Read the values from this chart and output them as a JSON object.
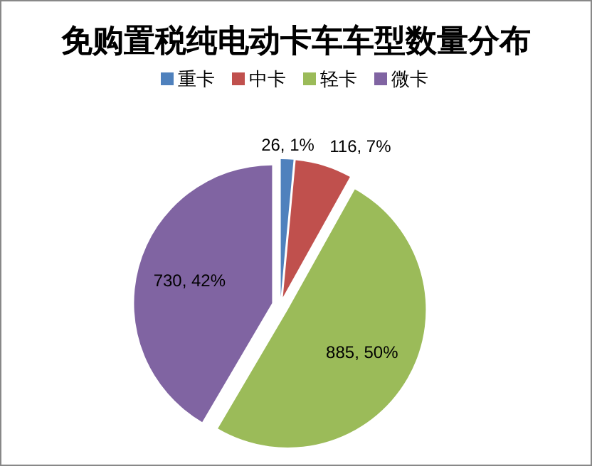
{
  "chart_data": {
    "type": "pie",
    "title": "免购置税纯电动卡车车型数量分布",
    "categories": [
      "重卡",
      "中卡",
      "轻卡",
      "微卡"
    ],
    "values": [
      26,
      116,
      885,
      730
    ],
    "colors": [
      "#4f81bd",
      "#c0504d",
      "#9bbb59",
      "#8064a2"
    ],
    "value_labels": [
      "26, 1%",
      "116, 7%",
      "885, 50%",
      "730, 42%"
    ],
    "legend": "top"
  }
}
